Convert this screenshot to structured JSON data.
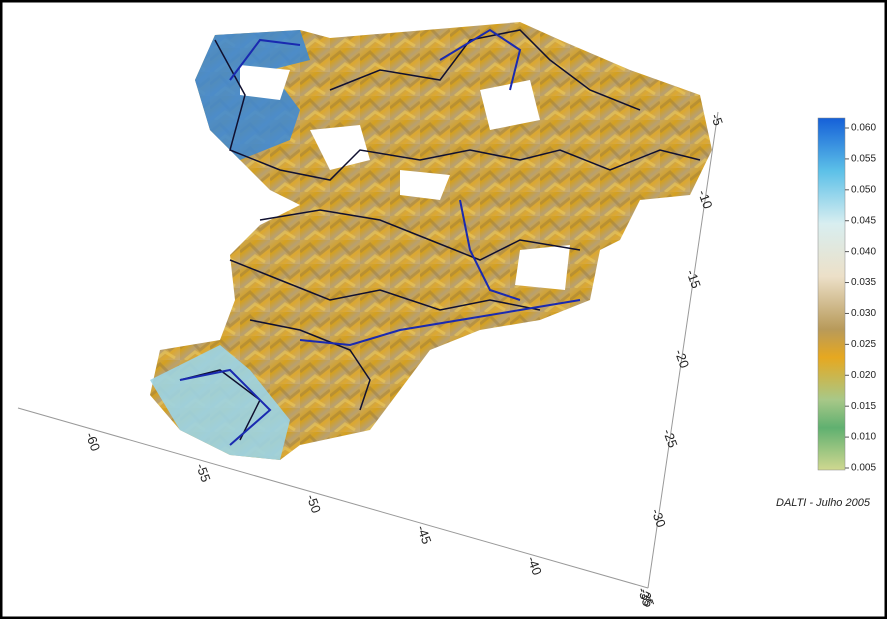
{
  "x_axis": {
    "ticks": [
      "-60",
      "-55",
      "-50",
      "-45",
      "-40",
      "-35"
    ]
  },
  "y_axis": {
    "ticks": [
      "-5",
      "-10",
      "-15",
      "-20",
      "-25",
      "-30",
      "-35"
    ]
  },
  "colorbar": {
    "ticks": [
      "0.060",
      "0.055",
      "0.050",
      "0.045",
      "0.040",
      "0.035",
      "0.030",
      "0.025",
      "0.020",
      "0.015",
      "0.010",
      "0.005"
    ]
  },
  "caption": "DALTI - Julho 2005"
}
